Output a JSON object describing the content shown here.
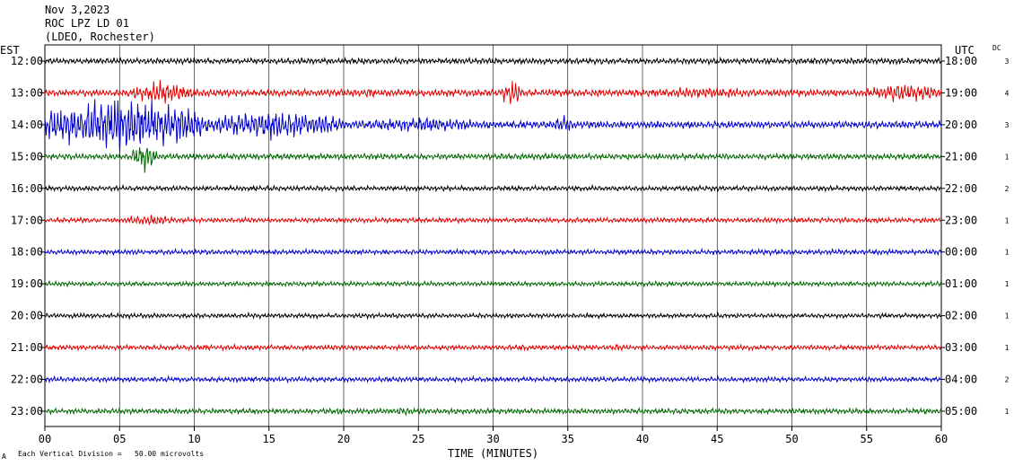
{
  "header": {
    "date": "Nov 3,2023",
    "station": "ROC LPZ LD 01",
    "network": "(LDEO, Rochester)"
  },
  "labels": {
    "left_timezone": "EST",
    "right_timezone": "UTC",
    "dc_header": "DC",
    "footer_scale": "Each Vertical Division =   50.00 microvolts",
    "footer_mark": "A"
  },
  "chart_data": {
    "type": "line",
    "title": "",
    "xlabel": "TIME (MINUTES)",
    "ylabel": "",
    "xlim": [
      0,
      60
    ],
    "x_ticks": [
      "00",
      "05",
      "10",
      "15",
      "20",
      "25",
      "30",
      "35",
      "40",
      "45",
      "50",
      "55",
      "60"
    ],
    "grid": true,
    "trace_colors": [
      "#000000",
      "#e00000",
      "#0000cc",
      "#006600"
    ],
    "series": [
      {
        "est": "12:00",
        "utc": "18:00",
        "dc": "3",
        "base_amp": 0.18,
        "events": []
      },
      {
        "est": "13:00",
        "utc": "19:00",
        "dc": "4",
        "base_amp": 0.22,
        "events": [
          {
            "t0": 5.8,
            "t1": 10.0,
            "amp": 0.7
          },
          {
            "t0": 21.5,
            "t1": 22.0,
            "amp": 0.5
          },
          {
            "t0": 30.6,
            "t1": 32.0,
            "amp": 0.8
          },
          {
            "t0": 38.0,
            "t1": 50.0,
            "amp": 0.35
          },
          {
            "t0": 55.0,
            "t1": 60.0,
            "amp": 0.6
          }
        ]
      },
      {
        "est": "14:00",
        "utc": "20:00",
        "dc": "3",
        "base_amp": 0.22,
        "events": [
          {
            "t0": 0.0,
            "t1": 10.5,
            "amp": 1.7
          },
          {
            "t0": 10.5,
            "t1": 20.0,
            "amp": 0.9
          },
          {
            "t0": 20.0,
            "t1": 30.0,
            "amp": 0.45
          },
          {
            "t0": 34.0,
            "t1": 35.5,
            "amp": 0.6
          }
        ]
      },
      {
        "est": "15:00",
        "utc": "21:00",
        "dc": "1",
        "base_amp": 0.18,
        "events": [
          {
            "t0": 5.8,
            "t1": 7.5,
            "amp": 0.9
          }
        ]
      },
      {
        "est": "16:00",
        "utc": "22:00",
        "dc": "2",
        "base_amp": 0.15,
        "events": []
      },
      {
        "est": "17:00",
        "utc": "23:00",
        "dc": "1",
        "base_amp": 0.15,
        "events": [
          {
            "t0": 5.5,
            "t1": 8.5,
            "amp": 0.4
          }
        ]
      },
      {
        "est": "18:00",
        "utc": "00:00",
        "dc": "1",
        "base_amp": 0.15,
        "events": []
      },
      {
        "est": "19:00",
        "utc": "01:00",
        "dc": "1",
        "base_amp": 0.14,
        "events": []
      },
      {
        "est": "20:00",
        "utc": "02:00",
        "dc": "1",
        "base_amp": 0.14,
        "events": []
      },
      {
        "est": "21:00",
        "utc": "03:00",
        "dc": "1",
        "base_amp": 0.15,
        "events": [
          {
            "t0": 38.0,
            "t1": 39.0,
            "amp": 0.3
          }
        ]
      },
      {
        "est": "22:00",
        "utc": "04:00",
        "dc": "2",
        "base_amp": 0.15,
        "events": []
      },
      {
        "est": "23:00",
        "utc": "05:00",
        "dc": "1",
        "base_amp": 0.16,
        "events": [
          {
            "t0": 19.5,
            "t1": 20.0,
            "amp": 0.3
          },
          {
            "t0": 23.5,
            "t1": 24.5,
            "amp": 0.3
          }
        ]
      }
    ]
  }
}
